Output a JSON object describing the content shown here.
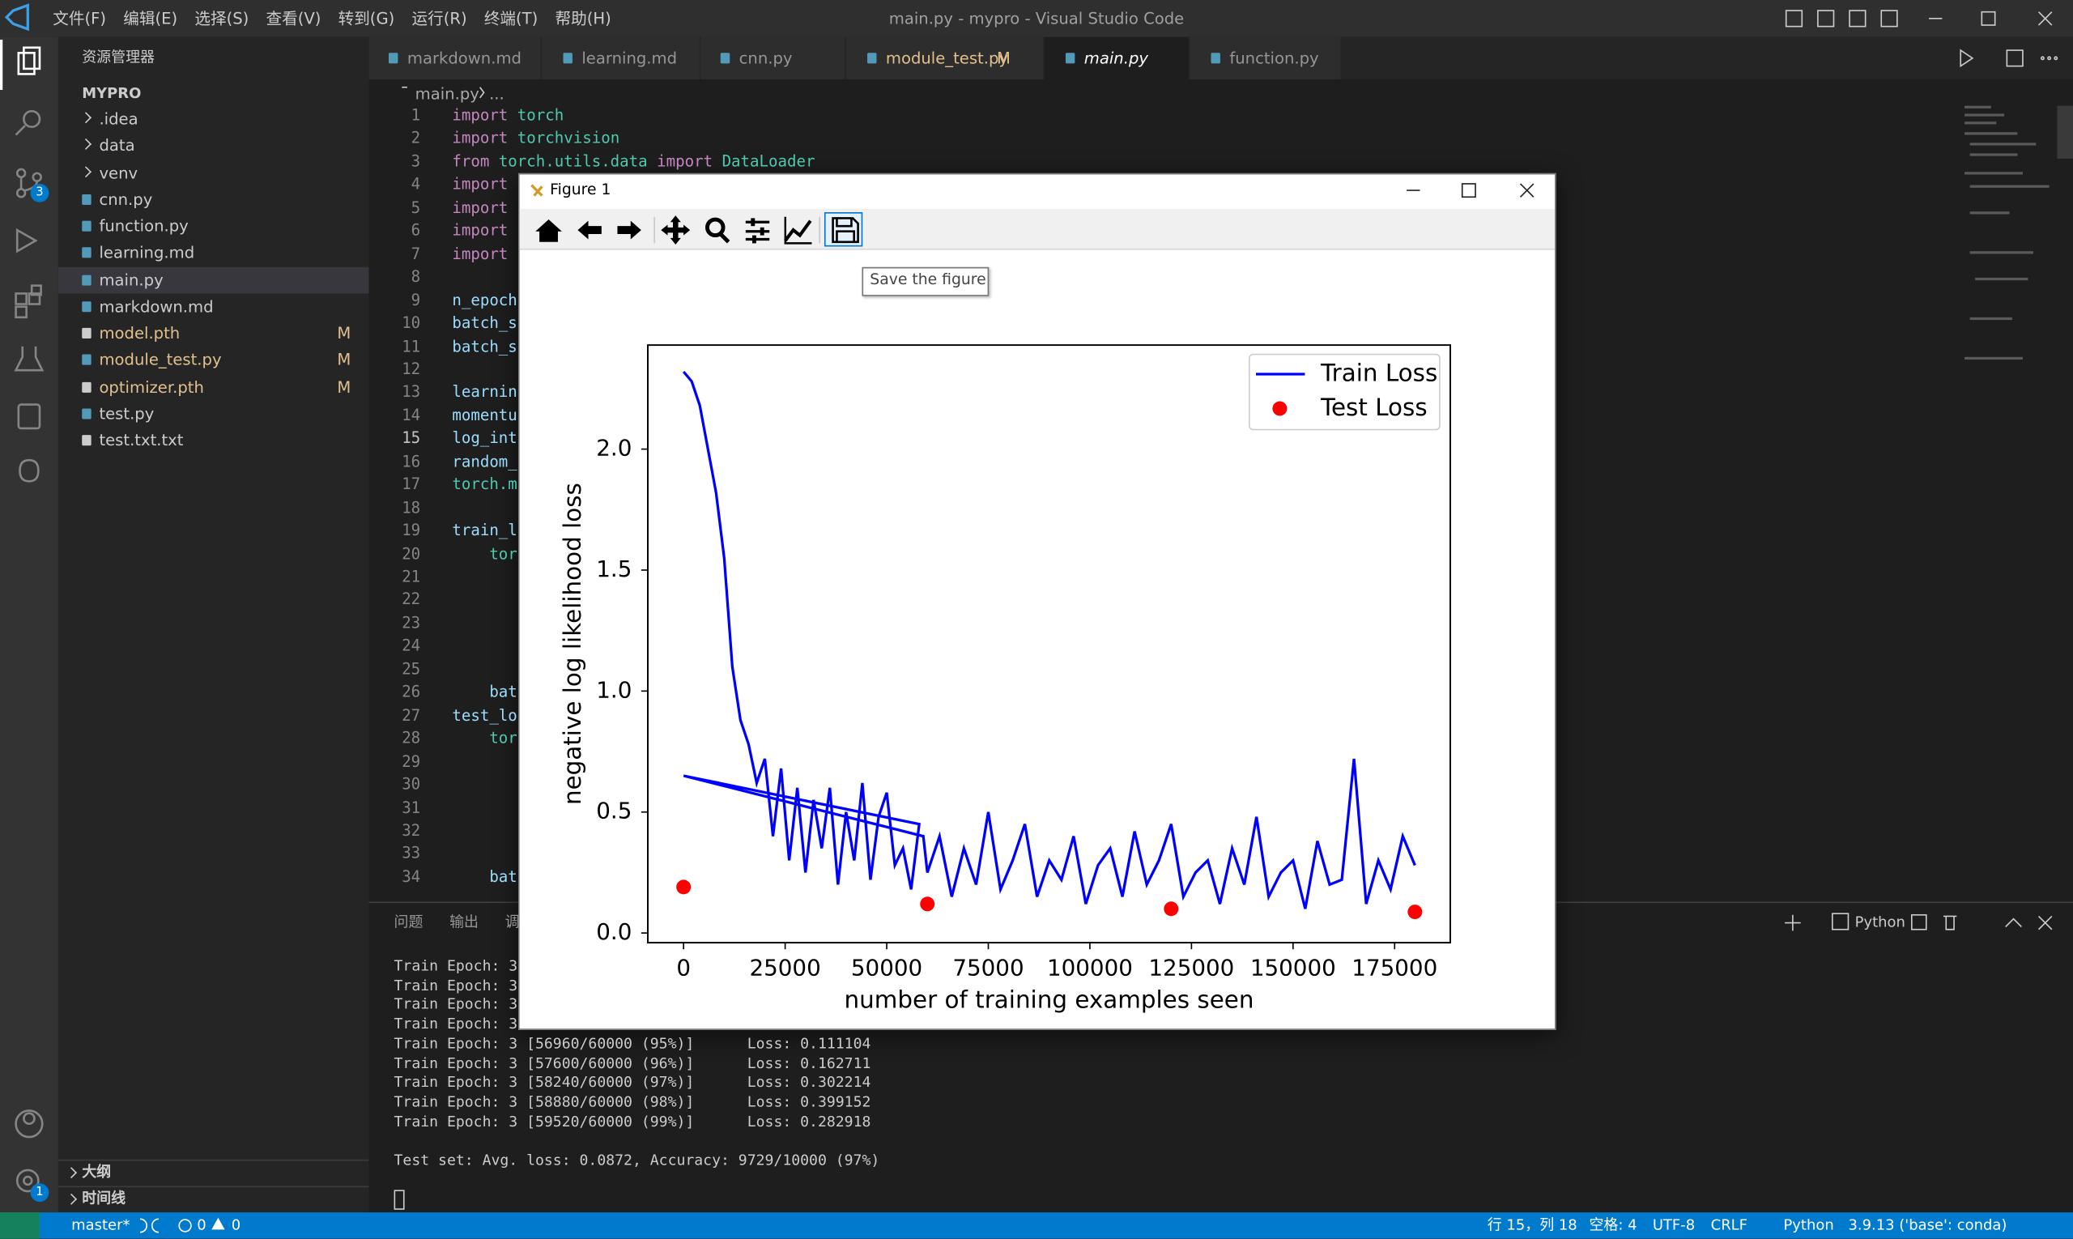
{
  "window": {
    "title": "main.py - mypro - Visual Studio Code",
    "menu": [
      "文件(F)",
      "编辑(E)",
      "选择(S)",
      "查看(V)",
      "转到(G)",
      "运行(R)",
      "终端(T)",
      "帮助(H)"
    ]
  },
  "activity_badges": {
    "source_control": 3,
    "settings": 1
  },
  "sidebar": {
    "title": "资源管理器",
    "root": "MYPRO",
    "items": [
      {
        "name": ".idea",
        "folder": true
      },
      {
        "name": "data",
        "folder": true
      },
      {
        "name": "venv",
        "folder": true
      },
      {
        "name": "cnn.py"
      },
      {
        "name": "function.py"
      },
      {
        "name": "learning.md"
      },
      {
        "name": "main.py",
        "selected": true
      },
      {
        "name": "markdown.md"
      },
      {
        "name": "model.pth",
        "status": "M"
      },
      {
        "name": "module_test.py",
        "status": "M"
      },
      {
        "name": "optimizer.pth",
        "status": "M"
      },
      {
        "name": "test.py"
      },
      {
        "name": "test.txt.txt"
      }
    ],
    "sections": [
      "大纲",
      "时间线"
    ]
  },
  "tabs": [
    {
      "name": "markdown.md"
    },
    {
      "name": "learning.md"
    },
    {
      "name": "cnn.py"
    },
    {
      "name": "module_test.py",
      "status": "M"
    },
    {
      "name": "main.py",
      "active": true
    },
    {
      "name": "function.py"
    }
  ],
  "breadcrumb": [
    "main.py",
    "..."
  ],
  "editor": {
    "current_line": 15,
    "lines": [
      {
        "num": 1,
        "tokens": [
          {
            "text": "import",
            "color": "#c586c0"
          },
          {
            "text": " torch",
            "color": "#4ec9b0"
          }
        ]
      },
      {
        "num": 2,
        "tokens": [
          {
            "text": "import",
            "color": "#c586c0"
          },
          {
            "text": " torchvision",
            "color": "#4ec9b0"
          }
        ]
      },
      {
        "num": 3,
        "tokens": [
          {
            "text": "from",
            "color": "#c586c0"
          },
          {
            "text": " torch.utils.data",
            "color": "#4ec9b0"
          },
          {
            "text": " import",
            "color": "#c586c0"
          },
          {
            "text": " DataLoader",
            "color": "#4ec9b0"
          }
        ]
      },
      {
        "num": 4,
        "tokens": [
          {
            "text": "import",
            "color": "#c586c0"
          }
        ]
      },
      {
        "num": 5,
        "tokens": [
          {
            "text": "import",
            "color": "#c586c0"
          }
        ]
      },
      {
        "num": 6,
        "tokens": [
          {
            "text": "import",
            "color": "#c586c0"
          }
        ]
      },
      {
        "num": 7,
        "tokens": [
          {
            "text": "import",
            "color": "#c586c0"
          }
        ]
      },
      {
        "num": 8,
        "tokens": []
      },
      {
        "num": 9,
        "tokens": [
          {
            "text": "n_epoch",
            "color": "#9cdcfe"
          }
        ]
      },
      {
        "num": 10,
        "tokens": [
          {
            "text": "batch_s",
            "color": "#9cdcfe"
          }
        ]
      },
      {
        "num": 11,
        "tokens": [
          {
            "text": "batch_s",
            "color": "#9cdcfe"
          }
        ]
      },
      {
        "num": 12,
        "tokens": []
      },
      {
        "num": 13,
        "tokens": [
          {
            "text": "learnin",
            "color": "#9cdcfe"
          }
        ]
      },
      {
        "num": 14,
        "tokens": [
          {
            "text": "momentu",
            "color": "#9cdcfe"
          }
        ]
      },
      {
        "num": 15,
        "tokens": [
          {
            "text": "log_int",
            "color": "#9cdcfe"
          }
        ]
      },
      {
        "num": 16,
        "tokens": [
          {
            "text": "random_",
            "color": "#9cdcfe"
          }
        ]
      },
      {
        "num": 17,
        "tokens": [
          {
            "text": "torch.m",
            "color": "#4ec9b0"
          }
        ]
      },
      {
        "num": 18,
        "tokens": []
      },
      {
        "num": 19,
        "tokens": [
          {
            "text": "train_l",
            "color": "#9cdcfe"
          }
        ]
      },
      {
        "num": 20,
        "tokens": [
          {
            "text": "    tor",
            "color": "#4ec9b0"
          }
        ]
      },
      {
        "num": 21,
        "tokens": []
      },
      {
        "num": 22,
        "tokens": []
      },
      {
        "num": 23,
        "tokens": []
      },
      {
        "num": 24,
        "tokens": []
      },
      {
        "num": 25,
        "tokens": []
      },
      {
        "num": 26,
        "tokens": [
          {
            "text": "    bat",
            "color": "#9cdcfe"
          }
        ]
      },
      {
        "num": 27,
        "tokens": [
          {
            "text": "test_lo",
            "color": "#9cdcfe"
          }
        ]
      },
      {
        "num": 28,
        "tokens": [
          {
            "text": "    tor",
            "color": "#4ec9b0"
          }
        ]
      },
      {
        "num": 29,
        "tokens": []
      },
      {
        "num": 30,
        "tokens": []
      },
      {
        "num": 31,
        "tokens": []
      },
      {
        "num": 32,
        "tokens": []
      },
      {
        "num": 33,
        "tokens": []
      },
      {
        "num": 34,
        "tokens": [
          {
            "text": "    bat",
            "color": "#9cdcfe"
          }
        ]
      }
    ]
  },
  "panel": {
    "tabs": [
      "问题",
      "输出",
      "调"
    ],
    "shell": "Python",
    "terminal": [
      "Train Epoch: 3",
      "Train Epoch: 3",
      "Train Epoch: 3",
      "Train Epoch: 3",
      "Train Epoch: 3 [56960/60000 (95%)]\tLoss: 0.111104",
      "Train Epoch: 3 [57600/60000 (96%)]\tLoss: 0.162711",
      "Train Epoch: 3 [58240/60000 (97%)]\tLoss: 0.302214",
      "Train Epoch: 3 [58880/60000 (98%)]\tLoss: 0.399152",
      "Train Epoch: 3 [59520/60000 (99%)]\tLoss: 0.282918",
      "",
      "Test set: Avg. loss: 0.0872, Accuracy: 9729/10000 (97%)"
    ]
  },
  "figure": {
    "title": "Figure 1",
    "tooltip": "Save the figure",
    "chart_data": {
      "type": "line",
      "xlabel": "number of training examples seen",
      "ylabel": "negative log likelihood loss",
      "xlim": [
        -8800,
        188700
      ],
      "ylim": [
        -0.04,
        2.43
      ],
      "xticks": [
        0,
        25000,
        50000,
        75000,
        100000,
        125000,
        150000,
        175000
      ],
      "yticks": [
        {
          "value": 0,
          "label": "0.0"
        },
        0.5,
        {
          "value": 1,
          "label": "1.0"
        },
        1.5,
        {
          "value": 2,
          "label": "2.0"
        }
      ],
      "legend": "upper right",
      "series": [
        {
          "name": "Train Loss",
          "kind": "line",
          "color": "#0000ff",
          "x": [
            0,
            2000,
            4000,
            6000,
            8000,
            10000,
            12000,
            14000,
            16000,
            18000,
            20000,
            22000,
            24000,
            26000,
            28000,
            30000,
            32000,
            34000,
            36000,
            38000,
            40000,
            42000,
            44000,
            46000,
            48000,
            50000,
            52000,
            54000,
            56000,
            58000,
            0,
            59000,
            60000,
            63000,
            66000,
            69000,
            72000,
            75000,
            78000,
            81000,
            84000,
            87000,
            90000,
            93000,
            96000,
            99000,
            102000,
            105000,
            108000,
            111000,
            114000,
            117000,
            120000,
            123000,
            126000,
            129000,
            132000,
            135000,
            138000,
            141000,
            144000,
            147000,
            150000,
            153000,
            156000,
            159000,
            162000,
            165000,
            168000,
            171000,
            174000,
            177000,
            180000
          ],
          "values": [
            2.32,
            2.28,
            2.18,
            2.0,
            1.82,
            1.55,
            1.1,
            0.88,
            0.78,
            0.62,
            0.72,
            0.4,
            0.68,
            0.3,
            0.6,
            0.25,
            0.55,
            0.35,
            0.6,
            0.2,
            0.5,
            0.3,
            0.62,
            0.22,
            0.48,
            0.58,
            0.28,
            0.35,
            0.18,
            0.45,
            0.65,
            0.4,
            0.25,
            0.4,
            0.15,
            0.35,
            0.2,
            0.5,
            0.18,
            0.3,
            0.45,
            0.15,
            0.3,
            0.22,
            0.4,
            0.12,
            0.28,
            0.35,
            0.15,
            0.42,
            0.2,
            0.3,
            0.45,
            0.15,
            0.25,
            0.3,
            0.12,
            0.35,
            0.2,
            0.48,
            0.15,
            0.25,
            0.3,
            0.1,
            0.38,
            0.2,
            0.22,
            0.72,
            0.12,
            0.3,
            0.18,
            0.4,
            0.28
          ]
        },
        {
          "name": "Test Loss",
          "kind": "scatter",
          "color": "#ff0000",
          "x": [
            0,
            60000,
            120000,
            180000
          ],
          "values": [
            0.19,
            0.12,
            0.1,
            0.0872
          ]
        }
      ]
    }
  },
  "statusbar": {
    "branch": "master*",
    "errors": 0,
    "warnings": 0,
    "position": "行 15，列 18",
    "indent": "空格: 4",
    "encoding": "UTF-8",
    "eol": "CRLF",
    "language": "Python",
    "interpreter": "3.9.13 ('base': conda)"
  }
}
